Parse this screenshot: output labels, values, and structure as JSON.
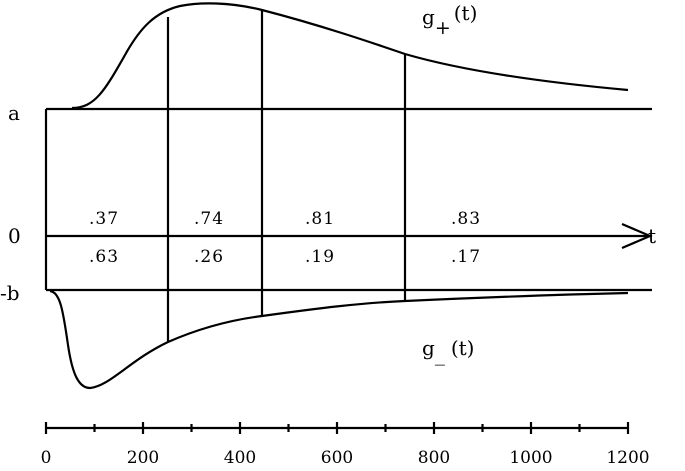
{
  "diagram": {
    "labels": {
      "a": "a",
      "zero": "0",
      "neg_b": "-b",
      "t": "t",
      "g_plus_base": "g",
      "g_plus_sub": "+",
      "g_plus_arg": "(t)",
      "g_minus_base": "g",
      "g_minus_sub": "_",
      "g_minus_arg": "(t)"
    },
    "upper_probs": [
      ".37",
      ".74",
      ".81",
      ".83"
    ],
    "lower_probs": [
      ".63",
      ".26",
      ".19",
      ".17"
    ],
    "time_ticks": [
      "0",
      "200",
      "400",
      "600",
      "800",
      "1000",
      "1200"
    ]
  }
}
